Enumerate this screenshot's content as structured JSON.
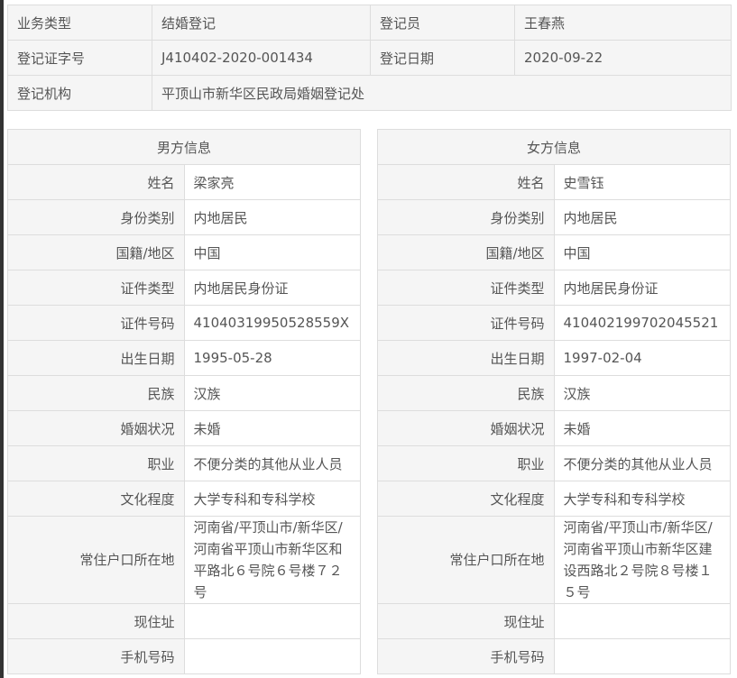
{
  "top": {
    "rows": [
      [
        "业务类型",
        "结婚登记",
        "登记员",
        "王春燕"
      ],
      [
        "登记证字号",
        "J410402-2020-001434",
        "登记日期",
        "2020-09-22"
      ],
      [
        "登记机构",
        "平顶山市新华区民政局婚姻登记处"
      ]
    ]
  },
  "labels": [
    "姓名",
    "身份类别",
    "国籍/地区",
    "证件类型",
    "证件号码",
    "出生日期",
    "民族",
    "婚姻状况",
    "职业",
    "文化程度",
    "常住户口所在地",
    "现住址",
    "手机号码"
  ],
  "male": {
    "title": "男方信息",
    "values": [
      "梁家亮",
      "内地居民",
      "中国",
      "内地居民身份证",
      "41040319950528559X",
      "1995-05-28",
      "汉族",
      "未婚",
      "不便分类的其他从业人员",
      "大学专科和专科学校",
      "河南省/平顶山市/新华区/河南省平顶山市新华区和平路北６号院６号楼７２号",
      "",
      ""
    ]
  },
  "female": {
    "title": "女方信息",
    "values": [
      "史雪钰",
      "内地居民",
      "中国",
      "内地居民身份证",
      "410402199702045521",
      "1997-02-04",
      "汉族",
      "未婚",
      "不便分类的其他从业人员",
      "大学专科和专科学校",
      "河南省/平顶山市/新华区/河南省平顶山市新华区建设西路北２号院８号楼１５号",
      "",
      ""
    ]
  }
}
